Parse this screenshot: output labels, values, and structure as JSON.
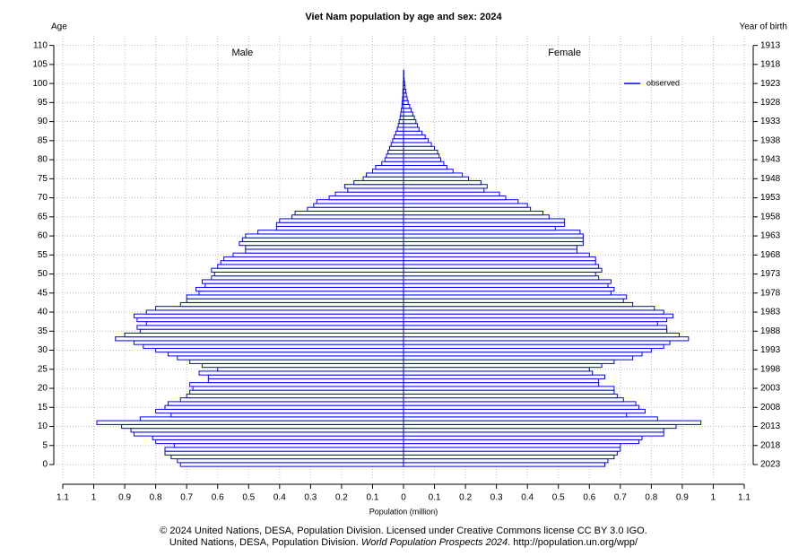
{
  "chart_data": {
    "type": "pyramid",
    "title": "Viet Nam population by age and sex: 2024",
    "y_label": "Age",
    "y2_label": "Year of birth",
    "x_label": "Population (million)",
    "legend_label": "observed",
    "legend_color": "#0000ff",
    "grid": true,
    "xlim": [
      -1.1,
      1.1
    ],
    "xticks": [
      {
        "value": -1.1,
        "label": "1.1"
      },
      {
        "value": -1,
        "label": "1"
      },
      {
        "value": -0.9,
        "label": "0.9"
      },
      {
        "value": -0.8,
        "label": "0.8"
      },
      {
        "value": -0.7,
        "label": "0.7"
      },
      {
        "value": -0.6,
        "label": "0.6"
      },
      {
        "value": -0.5,
        "label": "0.5"
      },
      {
        "value": -0.4,
        "label": "0.4"
      },
      {
        "value": -0.3,
        "label": "0.3"
      },
      {
        "value": -0.2,
        "label": "0.2"
      },
      {
        "value": -0.1,
        "label": "0.1"
      },
      0,
      0.1,
      0.2,
      0.3,
      0.4,
      0.5,
      0.6,
      0.7,
      0.8,
      0.9,
      1,
      1.1
    ],
    "ylim": [
      -4,
      112.5
    ],
    "yticks": [
      0,
      5,
      10,
      15,
      20,
      25,
      30,
      35,
      40,
      45,
      50,
      55,
      60,
      65,
      70,
      75,
      80,
      85,
      90,
      95,
      100,
      105,
      110
    ],
    "y2lim": [
      2027,
      1910.5
    ],
    "y2ticks": [
      2023,
      2018,
      2013,
      2008,
      2003,
      1998,
      1993,
      1988,
      1983,
      1978,
      1973,
      1968,
      1963,
      1958,
      1953,
      1948,
      1943,
      1938,
      1933,
      1928,
      1923,
      1918,
      1913
    ],
    "series": [
      {
        "name": "Male",
        "color": "#0000ff",
        "values": [
          0.72,
          0.73,
          0.75,
          0.77,
          0.77,
          0.74,
          0.8,
          0.81,
          0.87,
          0.88,
          0.91,
          0.99,
          0.85,
          0.75,
          0.8,
          0.77,
          0.76,
          0.72,
          0.7,
          0.69,
          0.68,
          0.69,
          0.63,
          0.63,
          0.66,
          0.6,
          0.65,
          0.69,
          0.73,
          0.76,
          0.8,
          0.84,
          0.87,
          0.93,
          0.9,
          0.85,
          0.86,
          0.83,
          0.86,
          0.87,
          0.83,
          0.8,
          0.72,
          0.7,
          0.7,
          0.66,
          0.67,
          0.64,
          0.65,
          0.62,
          0.61,
          0.62,
          0.6,
          0.59,
          0.58,
          0.55,
          0.51,
          0.51,
          0.53,
          0.52,
          0.51,
          0.47,
          0.41,
          0.41,
          0.4,
          0.36,
          0.35,
          0.31,
          0.29,
          0.28,
          0.24,
          0.22,
          0.18,
          0.19,
          0.16,
          0.13,
          0.12,
          0.1,
          0.09,
          0.07,
          0.06,
          0.055,
          0.05,
          0.045,
          0.04,
          0.035,
          0.03,
          0.025,
          0.02,
          0.017,
          0.014,
          0.011,
          0.009,
          0.007,
          0.005,
          0.004,
          0.003,
          0.002,
          0.002,
          0.001,
          0.001,
          0,
          0,
          0,
          0,
          0,
          0,
          0,
          0,
          0,
          0
        ]
      },
      {
        "name": "Female",
        "color": "#0000ff",
        "values": [
          0.65,
          0.66,
          0.68,
          0.69,
          0.7,
          0.7,
          0.76,
          0.77,
          0.84,
          0.84,
          0.88,
          0.96,
          0.82,
          0.72,
          0.78,
          0.76,
          0.75,
          0.71,
          0.69,
          0.68,
          0.68,
          0.63,
          0.63,
          0.65,
          0.61,
          0.6,
          0.64,
          0.68,
          0.74,
          0.77,
          0.8,
          0.84,
          0.86,
          0.92,
          0.89,
          0.85,
          0.85,
          0.82,
          0.85,
          0.87,
          0.84,
          0.81,
          0.74,
          0.71,
          0.72,
          0.67,
          0.68,
          0.66,
          0.67,
          0.63,
          0.62,
          0.64,
          0.63,
          0.62,
          0.62,
          0.6,
          0.56,
          0.56,
          0.58,
          0.58,
          0.58,
          0.57,
          0.49,
          0.52,
          0.52,
          0.47,
          0.45,
          0.41,
          0.4,
          0.37,
          0.33,
          0.31,
          0.26,
          0.27,
          0.25,
          0.21,
          0.19,
          0.16,
          0.14,
          0.13,
          0.12,
          0.115,
          0.11,
          0.1,
          0.09,
          0.08,
          0.07,
          0.06,
          0.05,
          0.045,
          0.04,
          0.035,
          0.03,
          0.025,
          0.02,
          0.015,
          0.012,
          0.009,
          0.007,
          0.005,
          0.004,
          0.002,
          0.001,
          0.001,
          0,
          0,
          0,
          0,
          0,
          0,
          0
        ]
      }
    ]
  },
  "footer": {
    "line1": "© 2024 United Nations, DESA, Population Division. Licensed under Creative Commons license CC BY 3.0 IGO.",
    "line2_start": "United Nations, DESA, Population Division. ",
    "line2_italic": "World Population Prospects 2024",
    "line2_end": ". http://population.un.org/wpp/"
  }
}
